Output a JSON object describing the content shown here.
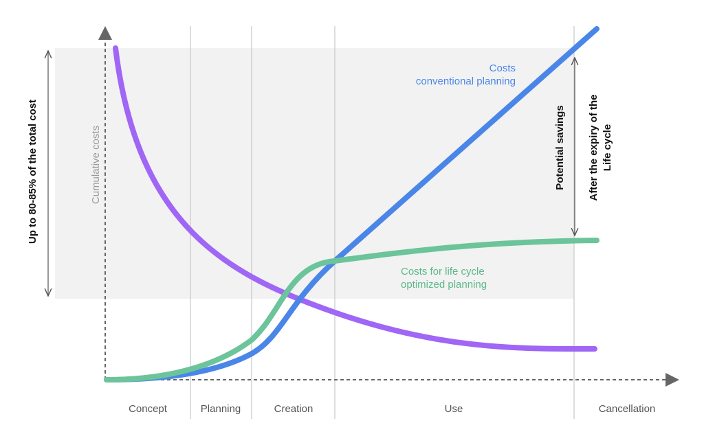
{
  "diagram": {
    "left_label": "Up to 80-85% of the total cost",
    "y_axis_label": "Cumulative costs",
    "conventional_label": [
      "Costs",
      "conventional planning"
    ],
    "optimized_label": [
      "Costs for life cycle",
      "optimized planning"
    ],
    "savings_label": "Potential savings",
    "expiry_label": [
      "After the expiry of the",
      "Life cycle"
    ],
    "phases": [
      "Concept",
      "Planning",
      "Creation",
      "Use",
      "Cancellation"
    ]
  }
}
